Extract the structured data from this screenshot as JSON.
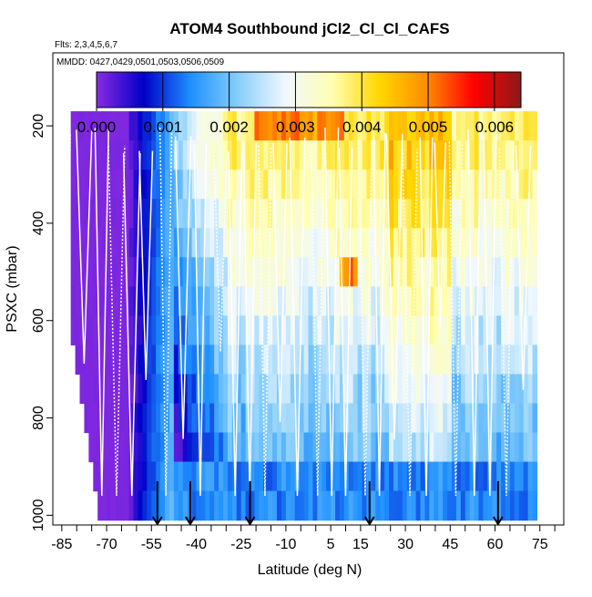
{
  "chart_data": {
    "type": "heatmap",
    "title": "ATOM4 Southbound jCl2_Cl_Cl_CAFS",
    "subtitle_flights": "Flts: 2,3,4,5,6,7",
    "subtitle_dates": "MMDD: 0427,0429,0501,0503,0506,0509",
    "xlabel": "Latitude (deg N)",
    "ylabel": "PSXC (mbar)",
    "xlim": [
      -88,
      83
    ],
    "ylim": [
      1020,
      50
    ],
    "x_ticks": [
      -85,
      -70,
      -55,
      -40,
      -25,
      -10,
      5,
      15,
      30,
      45,
      60,
      75
    ],
    "x_tick_labels": [
      "-85",
      "-70",
      "-55",
      "-40",
      "-25",
      "-10",
      "5",
      "15",
      "30",
      "45",
      "60",
      "75"
    ],
    "y_ticks": [
      200,
      400,
      600,
      800,
      1000
    ],
    "y_tick_labels": [
      "200",
      "400",
      "600",
      "800",
      "1000"
    ],
    "colorbar": {
      "min": 0.0,
      "max": 0.0064,
      "ticks": [
        0.0,
        0.001,
        0.002,
        0.003,
        0.004,
        0.005,
        0.006
      ],
      "tick_labels": [
        "0.000",
        "0.001",
        "0.002",
        "0.003",
        "0.004",
        "0.005",
        "0.006"
      ],
      "colors": [
        "#8a2be2",
        "#0000c8",
        "#1e90ff",
        "#87cefa",
        "#f0f8ff",
        "#ffffb0",
        "#ffd700",
        "#ff8c00",
        "#ff0000",
        "#8b1a1a"
      ]
    },
    "profile_markers_lat": [
      -53,
      -42,
      -22,
      18,
      61
    ],
    "pressure_levels": [
      200,
      260,
      320,
      380,
      440,
      500,
      560,
      620,
      680,
      740,
      800,
      860,
      920,
      980
    ]
  }
}
